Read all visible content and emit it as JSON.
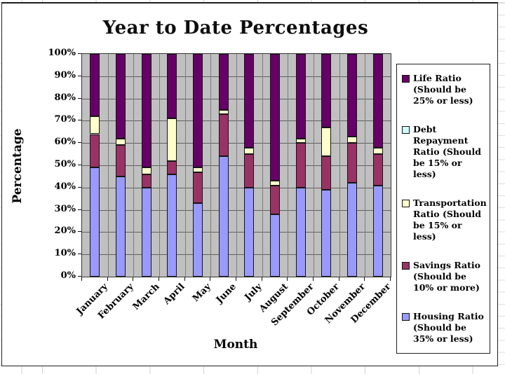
{
  "chart": {
    "title": "Year to Date Percentages",
    "x_axis_title": "Month",
    "y_axis_title": "Percentage"
  },
  "chart_data": {
    "type": "bar",
    "stacked": true,
    "title": "Year to Date Percentages",
    "xlabel": "Month",
    "ylabel": "Percentage",
    "ylim": [
      0,
      100
    ],
    "y_tick_step": 10,
    "y_tick_labels": [
      "0%",
      "10%",
      "20%",
      "30%",
      "40%",
      "50%",
      "60%",
      "70%",
      "80%",
      "90%",
      "100%"
    ],
    "grid": true,
    "plot_background": "#c0c0c0",
    "legend_position": "right",
    "categories": [
      "January",
      "February",
      "March",
      "April",
      "May",
      "June",
      "July",
      "August",
      "September",
      "October",
      "November",
      "December"
    ],
    "series": [
      {
        "name": "Housing Ratio (Should be 35% or less)",
        "color": "#9999FF",
        "values": [
          49,
          45,
          40,
          46,
          33,
          54,
          40,
          28,
          40,
          39,
          42,
          41
        ]
      },
      {
        "name": "Savings Ratio (Should be 10% or more)",
        "color": "#993366",
        "values": [
          15,
          14,
          6,
          6,
          14,
          19,
          15,
          13,
          20,
          15,
          18,
          14
        ]
      },
      {
        "name": "Transportation Ratio (Should be 15% or less)",
        "color": "#FFFFCC",
        "values": [
          8,
          3,
          3,
          19,
          2,
          2,
          3,
          2,
          2,
          13,
          3,
          3
        ]
      },
      {
        "name": "Debt Repayment Ratio (Should be 15% or less)",
        "color": "#CCFFFF",
        "values": [
          0,
          0,
          0,
          0,
          0,
          0,
          0,
          0,
          0,
          0,
          0,
          0
        ]
      },
      {
        "name": "Life Ratio (Should be 25% or less)",
        "color": "#660066",
        "values": [
          28,
          38,
          51,
          29,
          51,
          25,
          42,
          57,
          38,
          33,
          37,
          42
        ]
      }
    ]
  },
  "legend": {
    "items": [
      {
        "id": "life-ratio",
        "label": "Life Ratio (Should be 25% or less)",
        "color": "#660066"
      },
      {
        "id": "debt-repayment-ratio",
        "label": "Debt Repayment Ratio (Should be 15% or less)",
        "color": "#CCFFFF"
      },
      {
        "id": "transportation-ratio",
        "label": "Transportation Ratio (Should be 15% or less)",
        "color": "#FFFFCC"
      },
      {
        "id": "savings-ratio",
        "label": "Savings Ratio (Should be 10% or more)",
        "color": "#993366"
      },
      {
        "id": "housing-ratio",
        "label": "Housing Ratio (Should be 35% or less)",
        "color": "#9999FF"
      }
    ]
  }
}
